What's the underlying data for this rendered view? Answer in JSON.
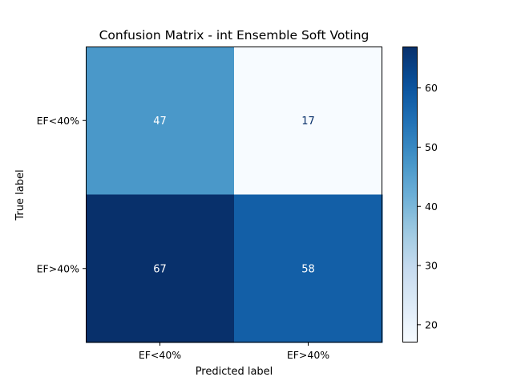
{
  "chart_data": {
    "type": "heatmap",
    "title": "Confusion Matrix - int Ensemble Soft Voting",
    "xlabel": "Predicted label",
    "ylabel": "True label",
    "x_categories": [
      "EF<40%",
      "EF>40%"
    ],
    "y_categories": [
      "EF<40%",
      "EF>40%"
    ],
    "values": [
      [
        47,
        17
      ],
      [
        67,
        58
      ]
    ],
    "colormap": "Blues",
    "colorbar": {
      "range": [
        17,
        67
      ],
      "ticks": [
        20,
        30,
        40,
        50,
        60
      ]
    }
  },
  "colors": {
    "text_dark": "#08306b",
    "text_light": "#ffffff",
    "axis": "#000000"
  }
}
